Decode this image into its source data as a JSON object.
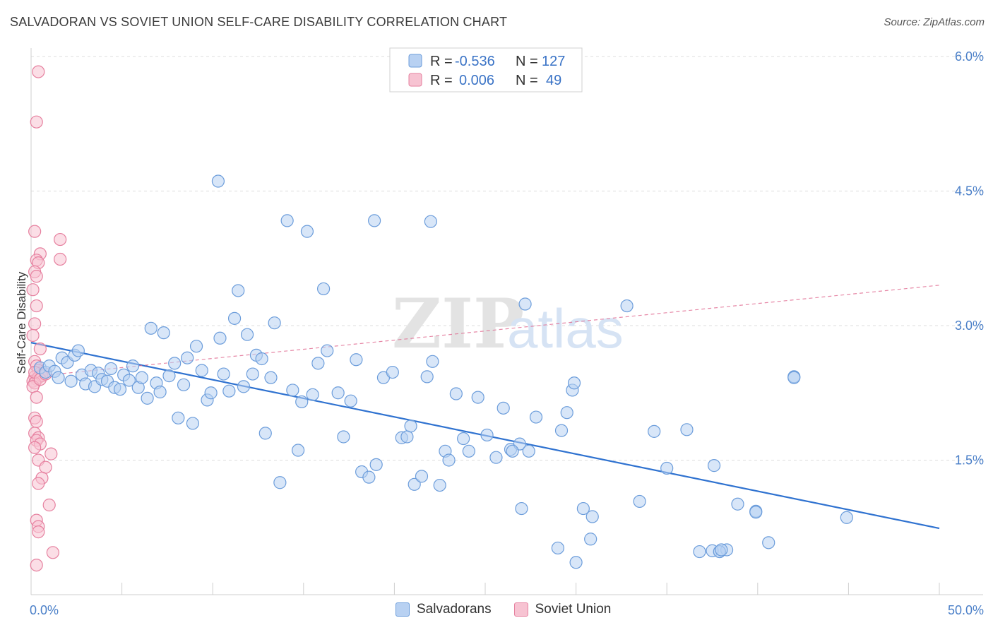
{
  "title": "SALVADORAN VS SOVIET UNION SELF-CARE DISABILITY CORRELATION CHART",
  "source": "Source: ZipAtlas.com",
  "watermark": {
    "zip": "ZIP",
    "atlas": "atlas"
  },
  "colors": {
    "blue_fill": "#b8d1f2",
    "blue_stroke": "#6c9ddb",
    "blue_line": "#2f72d0",
    "pink_fill": "#f7c3d2",
    "pink_stroke": "#e6809f",
    "pink_line": "#e06a90",
    "tick_text": "#4a7fc8",
    "grid": "#dcdcdc"
  },
  "legend": {
    "rows": [
      {
        "r_label": "R =",
        "r_value": "-0.536",
        "n_label": "N =",
        "n_value": "127"
      },
      {
        "r_label": "R =",
        "r_value": "0.006",
        "n_label": "N =",
        "n_value": "49"
      }
    ]
  },
  "bottom_legend": {
    "items": [
      "Salvadorans",
      "Soviet Union"
    ]
  },
  "chart_data": {
    "type": "scatter",
    "title": "SALVADORAN VS SOVIET UNION SELF-CARE DISABILITY CORRELATION CHART",
    "xlabel": "",
    "ylabel": "Self-Care Disability",
    "xlim": [
      0,
      50
    ],
    "ylim": [
      0,
      6.0
    ],
    "x_tick_labels": [
      "0.0%",
      "50.0%"
    ],
    "y_ticks": [
      1.5,
      3.0,
      4.5,
      6.0
    ],
    "y_tick_labels": [
      "1.5%",
      "3.0%",
      "4.5%",
      "6.0%"
    ],
    "grid": true,
    "legend_position": "top-center",
    "series": [
      {
        "name": "Salvadorans",
        "R": -0.536,
        "N": 127,
        "trend": {
          "x": [
            0,
            50
          ],
          "y": [
            2.81,
            0.74
          ]
        },
        "points": [
          [
            0.5,
            2.53
          ],
          [
            0.8,
            2.48
          ],
          [
            1.0,
            2.55
          ],
          [
            1.3,
            2.49
          ],
          [
            1.5,
            2.42
          ],
          [
            1.7,
            2.64
          ],
          [
            2.0,
            2.59
          ],
          [
            2.2,
            2.38
          ],
          [
            2.4,
            2.67
          ],
          [
            2.6,
            2.72
          ],
          [
            2.8,
            2.45
          ],
          [
            3.0,
            2.35
          ],
          [
            3.3,
            2.5
          ],
          [
            3.5,
            2.32
          ],
          [
            3.7,
            2.47
          ],
          [
            3.9,
            2.4
          ],
          [
            4.2,
            2.38
          ],
          [
            4.4,
            2.52
          ],
          [
            4.6,
            2.31
          ],
          [
            4.9,
            2.29
          ],
          [
            5.1,
            2.45
          ],
          [
            5.4,
            2.39
          ],
          [
            5.6,
            2.55
          ],
          [
            5.9,
            2.31
          ],
          [
            6.1,
            2.42
          ],
          [
            6.4,
            2.19
          ],
          [
            6.6,
            2.97
          ],
          [
            6.9,
            2.36
          ],
          [
            7.1,
            2.26
          ],
          [
            7.3,
            2.92
          ],
          [
            7.6,
            2.44
          ],
          [
            7.9,
            2.58
          ],
          [
            8.1,
            1.97
          ],
          [
            8.4,
            2.34
          ],
          [
            8.6,
            2.64
          ],
          [
            8.9,
            1.91
          ],
          [
            9.1,
            2.77
          ],
          [
            9.4,
            2.5
          ],
          [
            9.7,
            2.17
          ],
          [
            9.9,
            2.25
          ],
          [
            10.3,
            4.61
          ],
          [
            10.4,
            2.86
          ],
          [
            10.6,
            2.46
          ],
          [
            10.9,
            2.27
          ],
          [
            11.2,
            3.08
          ],
          [
            11.4,
            3.39
          ],
          [
            11.7,
            2.32
          ],
          [
            11.9,
            2.9
          ],
          [
            12.2,
            2.46
          ],
          [
            12.4,
            2.67
          ],
          [
            12.7,
            2.63
          ],
          [
            12.9,
            1.8
          ],
          [
            13.2,
            2.42
          ],
          [
            13.4,
            3.03
          ],
          [
            13.7,
            1.25
          ],
          [
            14.1,
            4.17
          ],
          [
            14.4,
            2.28
          ],
          [
            14.7,
            1.61
          ],
          [
            14.9,
            2.15
          ],
          [
            15.2,
            4.05
          ],
          [
            15.5,
            2.23
          ],
          [
            15.8,
            2.58
          ],
          [
            16.1,
            3.41
          ],
          [
            16.3,
            2.72
          ],
          [
            16.9,
            2.25
          ],
          [
            17.2,
            1.76
          ],
          [
            17.6,
            2.16
          ],
          [
            17.9,
            2.62
          ],
          [
            18.2,
            1.37
          ],
          [
            18.6,
            1.31
          ],
          [
            18.9,
            4.17
          ],
          [
            19.0,
            1.45
          ],
          [
            19.4,
            2.42
          ],
          [
            19.9,
            2.48
          ],
          [
            20.4,
            1.75
          ],
          [
            20.7,
            1.76
          ],
          [
            20.9,
            1.88
          ],
          [
            21.1,
            1.23
          ],
          [
            21.5,
            1.32
          ],
          [
            21.8,
            2.43
          ],
          [
            22.0,
            4.16
          ],
          [
            22.1,
            2.6
          ],
          [
            22.5,
            1.22
          ],
          [
            22.8,
            1.6
          ],
          [
            23.0,
            1.5
          ],
          [
            23.4,
            2.24
          ],
          [
            23.8,
            1.74
          ],
          [
            24.1,
            1.6
          ],
          [
            24.6,
            2.2
          ],
          [
            25.1,
            1.78
          ],
          [
            25.6,
            1.53
          ],
          [
            26.0,
            2.08
          ],
          [
            26.4,
            1.62
          ],
          [
            26.9,
            1.68
          ],
          [
            27.2,
            3.24
          ],
          [
            27.4,
            1.6
          ],
          [
            27.8,
            1.98
          ],
          [
            29.2,
            1.83
          ],
          [
            29.5,
            2.03
          ],
          [
            29.8,
            2.28
          ],
          [
            29.9,
            2.36
          ],
          [
            30.4,
            0.96
          ],
          [
            30.9,
            0.87
          ],
          [
            29.0,
            0.52
          ],
          [
            30.0,
            0.36
          ],
          [
            30.8,
            0.62
          ],
          [
            32.8,
            3.22
          ],
          [
            33.5,
            1.04
          ],
          [
            34.3,
            1.82
          ],
          [
            35.0,
            1.41
          ],
          [
            36.1,
            1.84
          ],
          [
            37.6,
            1.44
          ],
          [
            37.9,
            0.48
          ],
          [
            40.6,
            0.58
          ],
          [
            37.5,
            0.49
          ],
          [
            38.3,
            0.5
          ],
          [
            37.9,
            0.48
          ],
          [
            38.0,
            0.5
          ],
          [
            38.9,
            1.01
          ],
          [
            39.9,
            0.93
          ],
          [
            39.9,
            0.92
          ],
          [
            42.0,
            2.43
          ],
          [
            42.0,
            2.42
          ],
          [
            44.9,
            0.86
          ],
          [
            36.8,
            0.48
          ],
          [
            27.0,
            0.96
          ],
          [
            26.5,
            1.6
          ]
        ]
      },
      {
        "name": "Soviet Union",
        "R": 0.006,
        "N": 49,
        "trend": {
          "x": [
            0,
            50
          ],
          "y": [
            2.43,
            3.45
          ]
        },
        "points": [
          [
            0.4,
            5.83
          ],
          [
            0.3,
            5.27
          ],
          [
            0.2,
            4.05
          ],
          [
            1.6,
            3.96
          ],
          [
            0.5,
            3.8
          ],
          [
            0.3,
            3.73
          ],
          [
            0.4,
            3.7
          ],
          [
            1.6,
            3.74
          ],
          [
            0.2,
            3.6
          ],
          [
            0.3,
            3.55
          ],
          [
            0.1,
            3.4
          ],
          [
            0.3,
            3.22
          ],
          [
            0.2,
            3.02
          ],
          [
            0.1,
            2.89
          ],
          [
            0.5,
            2.74
          ],
          [
            0.2,
            2.6
          ],
          [
            0.3,
            2.55
          ],
          [
            0.4,
            2.5
          ],
          [
            0.5,
            2.47
          ],
          [
            0.6,
            2.45
          ],
          [
            0.2,
            2.43
          ],
          [
            0.3,
            2.4
          ],
          [
            0.1,
            2.38
          ],
          [
            0.4,
            2.42
          ],
          [
            0.6,
            2.44
          ],
          [
            0.2,
            2.36
          ],
          [
            0.1,
            2.32
          ],
          [
            0.3,
            2.2
          ],
          [
            0.2,
            1.97
          ],
          [
            0.3,
            1.93
          ],
          [
            0.2,
            1.8
          ],
          [
            0.4,
            1.75
          ],
          [
            0.3,
            1.72
          ],
          [
            0.5,
            1.68
          ],
          [
            0.2,
            1.64
          ],
          [
            1.1,
            1.57
          ],
          [
            0.4,
            1.5
          ],
          [
            0.8,
            1.42
          ],
          [
            0.6,
            1.3
          ],
          [
            0.4,
            1.24
          ],
          [
            1.0,
            1.0
          ],
          [
            0.3,
            0.83
          ],
          [
            0.4,
            0.76
          ],
          [
            0.4,
            0.7
          ],
          [
            1.2,
            0.47
          ],
          [
            0.3,
            0.33
          ],
          [
            0.2,
            2.48
          ],
          [
            0.5,
            2.4
          ],
          [
            0.8,
            2.46
          ]
        ]
      }
    ]
  }
}
